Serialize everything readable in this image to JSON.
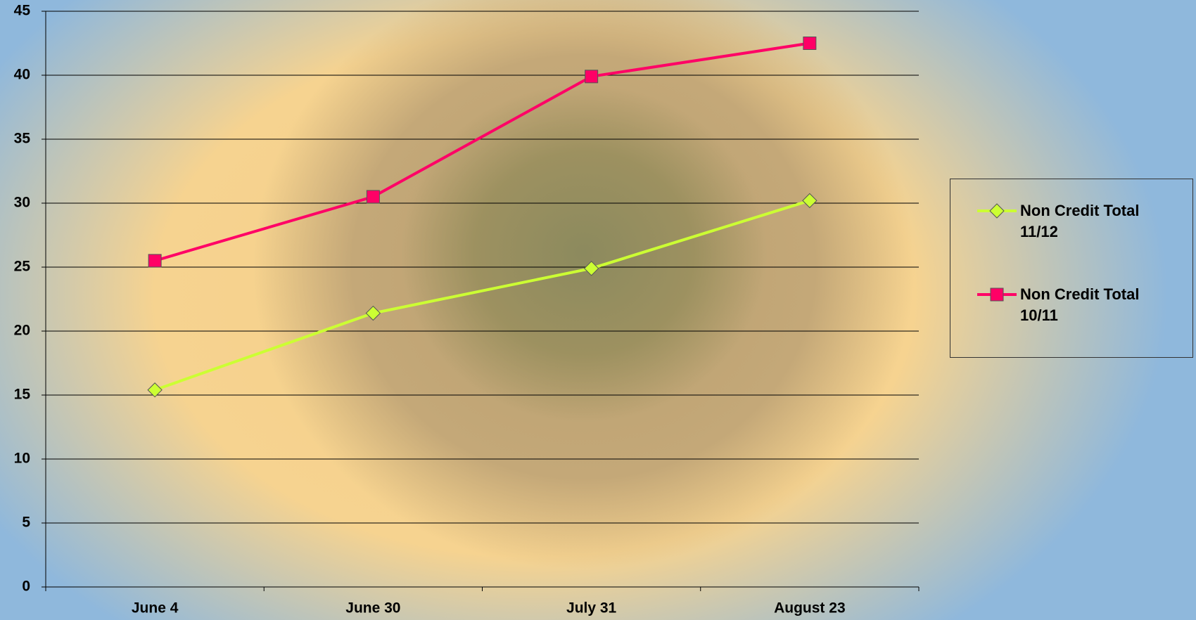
{
  "chart_data": {
    "type": "line",
    "categories": [
      "June 4",
      "June 30",
      "July 31",
      "August 23"
    ],
    "series": [
      {
        "name": "Non Credit Total 11/12",
        "color": "#ccff33",
        "marker": "diamond",
        "values": [
          15.4,
          21.4,
          24.9,
          30.2
        ]
      },
      {
        "name": "Non Credit Total 10/11",
        "color": "#ff0066",
        "marker": "square",
        "values": [
          25.5,
          30.5,
          39.9,
          42.5
        ]
      }
    ],
    "ylim": [
      0,
      45
    ],
    "yticks": [
      0,
      5,
      10,
      15,
      20,
      25,
      30,
      35,
      40,
      45
    ],
    "grid": true,
    "legend": "right"
  }
}
